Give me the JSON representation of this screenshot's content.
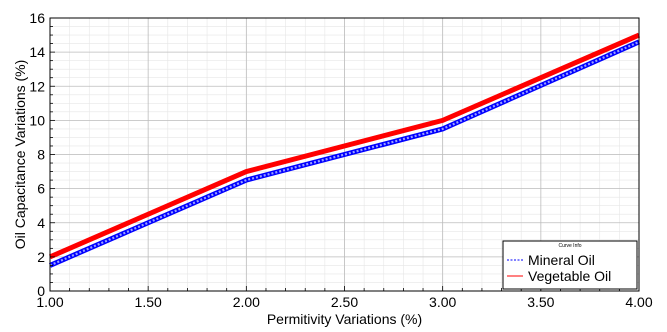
{
  "chart_data": {
    "type": "line",
    "xlabel": "Permitivity Variations (%)",
    "ylabel": "Oil Capacitance  Variations (%)",
    "xlim": [
      1.0,
      4.0
    ],
    "ylim": [
      0,
      16
    ],
    "x_ticks": [
      "1.00",
      "1.50",
      "2.00",
      "2.50",
      "3.00",
      "3.50",
      "4.00"
    ],
    "y_ticks": [
      "0",
      "2",
      "4",
      "6",
      "8",
      "10",
      "12",
      "14",
      "16"
    ],
    "grid": true,
    "legend": {
      "title": "Curve Info",
      "placement": "bottom-right"
    },
    "series": [
      {
        "name": "Mineral Oil",
        "color": "#0000ff",
        "style": "dashed",
        "x": [
          1.0,
          2.0,
          3.0,
          4.0
        ],
        "y": [
          1.5,
          6.5,
          9.5,
          14.6
        ]
      },
      {
        "name": "Vegetable Oil",
        "color": "#ff0000",
        "style": "solid",
        "x": [
          1.0,
          2.0,
          3.0,
          4.0
        ],
        "y": [
          2.0,
          7.0,
          10.0,
          15.0
        ]
      }
    ]
  }
}
